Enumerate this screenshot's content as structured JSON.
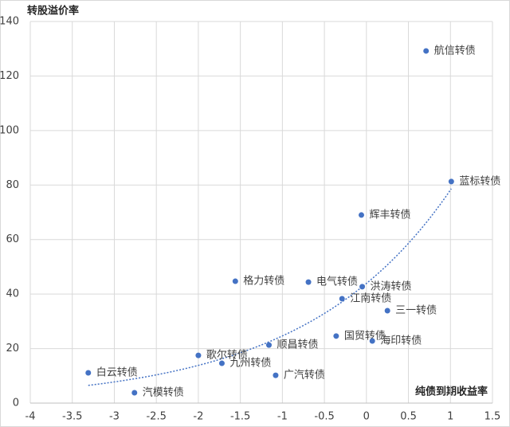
{
  "chart_data": {
    "type": "scatter",
    "y_label": "转股溢价率",
    "x_label": "纯债到期收益率",
    "series": [
      {
        "color": "#4472c4",
        "labels": [
          "航信转债",
          "蓝标转债",
          "辉丰转债",
          "格力转债",
          "电气转债",
          "洪涛转债",
          "江南转债",
          "三一转债",
          "国贸转债",
          "海印转债",
          "顺昌转债",
          "歌尔转债",
          "九州转债",
          "白云转债",
          "广汽转债",
          "汽模转债"
        ],
        "x": [
          0.71,
          1.01,
          -0.06,
          -1.56,
          -0.69,
          -0.05,
          -0.29,
          0.25,
          -0.36,
          0.07,
          -1.16,
          -2.0,
          -1.72,
          -3.31,
          -1.08,
          -2.76
        ],
        "values": [
          129.2,
          81.3,
          69,
          44.7,
          44.4,
          42.7,
          38.3,
          33.9,
          24.6,
          22.8,
          21.3,
          17.5,
          14.6,
          11.1,
          10.2,
          3.8
        ]
      }
    ],
    "trendline": "exponential",
    "xlim": [
      -4,
      1.5
    ],
    "xticks": [
      -4,
      -3.5,
      -3,
      -2.5,
      -2,
      -1.5,
      -1,
      -0.5,
      0,
      0.5,
      1,
      1.5
    ],
    "ylim": [
      0,
      140
    ],
    "yticks": [
      0,
      20,
      40,
      60,
      80,
      100,
      120,
      140
    ],
    "grid": true
  }
}
